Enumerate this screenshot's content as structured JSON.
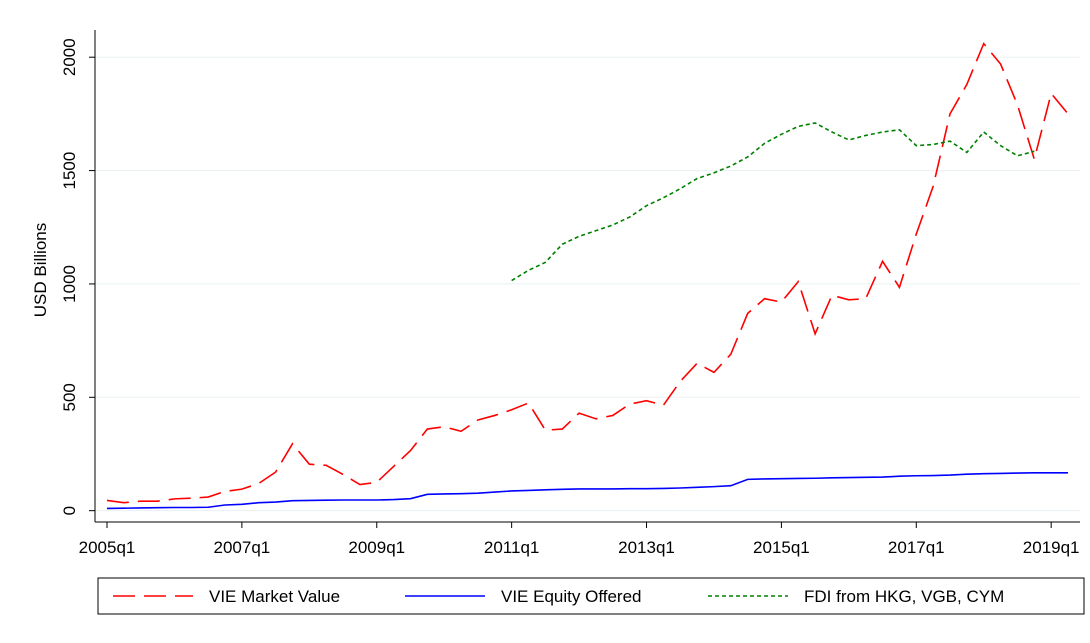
{
  "chart_data": {
    "type": "line",
    "ylabel": "USD Billions",
    "categories": [
      "2005q1",
      null,
      null,
      null,
      null,
      null,
      null,
      null,
      "2007q1",
      null,
      null,
      null,
      null,
      null,
      null,
      null,
      "2009q1",
      null,
      null,
      null,
      null,
      null,
      null,
      null,
      "2011q1",
      null,
      null,
      null,
      null,
      null,
      null,
      null,
      "2013q1",
      null,
      null,
      null,
      null,
      null,
      null,
      null,
      "2015q1",
      null,
      null,
      null,
      null,
      null,
      null,
      null,
      "2017q1",
      null,
      null,
      null,
      null,
      null,
      null,
      null,
      "2019q1",
      null
    ],
    "series": [
      {
        "name": "VIE Market Value",
        "color": "#ff0000",
        "dash": "dashed",
        "values": [
          45,
          35,
          42,
          42,
          52,
          55,
          60,
          85,
          95,
          120,
          170,
          295,
          205,
          200,
          160,
          115,
          125,
          195,
          265,
          360,
          370,
          350,
          400,
          420,
          445,
          475,
          355,
          360,
          430,
          405,
          420,
          470,
          485,
          465,
          570,
          650,
          610,
          690,
          870,
          935,
          920,
          1010,
          780,
          950,
          930,
          935,
          1100,
          985,
          1220,
          1430,
          1750,
          1880,
          2060,
          1970,
          1790,
          1550,
          1840,
          1750
        ]
      },
      {
        "name": "VIE Equity Offered",
        "color": "#0000ff",
        "dash": "solid",
        "values": [
          10,
          11,
          12,
          13,
          14,
          14,
          15,
          25,
          28,
          35,
          38,
          44,
          45,
          46,
          47,
          47,
          47,
          49,
          53,
          72,
          74,
          75,
          77,
          82,
          87,
          89,
          92,
          94,
          96,
          96,
          96,
          97,
          97,
          98,
          100,
          103,
          106,
          110,
          138,
          140,
          141,
          142,
          143,
          145,
          146,
          147,
          148,
          152,
          154,
          155,
          157,
          161,
          163,
          164,
          166,
          167,
          167,
          167
        ]
      },
      {
        "name": "FDI from HKG, VGB, CYM",
        "color": "#008000",
        "dash": "dotted",
        "values": [
          null,
          null,
          null,
          null,
          null,
          null,
          null,
          null,
          null,
          null,
          null,
          null,
          null,
          null,
          null,
          null,
          null,
          null,
          null,
          null,
          null,
          null,
          null,
          null,
          1015,
          1060,
          1095,
          1175,
          1210,
          1235,
          1260,
          1295,
          1345,
          1380,
          1420,
          1465,
          1490,
          1520,
          1560,
          1620,
          1660,
          1695,
          1710,
          1670,
          1635,
          1655,
          1670,
          1680,
          1610,
          1615,
          1630,
          1580,
          1670,
          1610,
          1565,
          1585,
          null,
          null
        ]
      }
    ],
    "ylim": [
      -50,
      2120
    ],
    "yticks": [
      0,
      500,
      1000,
      1500,
      2000
    ],
    "grid": true,
    "legend": "bottom"
  }
}
